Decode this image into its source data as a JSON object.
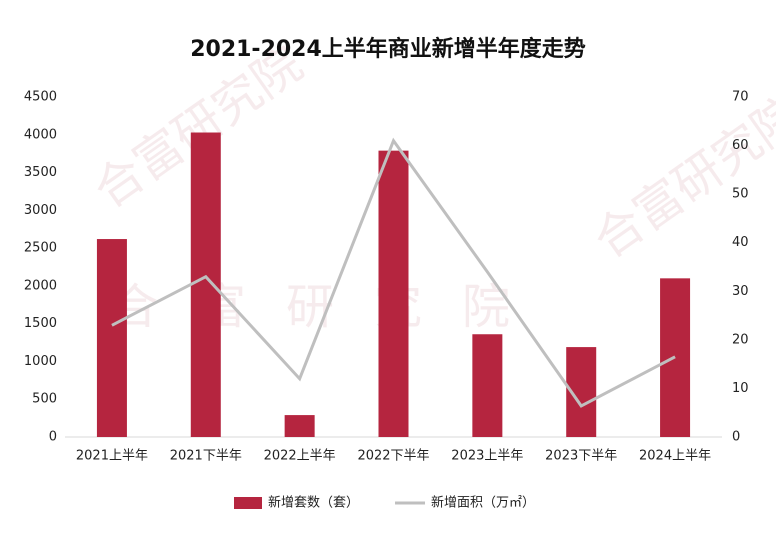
{
  "chart_data": {
    "type": "bar",
    "title": "2021-2024上半年商业新增半年度走势",
    "watermark": "合富研究院",
    "categories": [
      "2021上半年",
      "2021下半年",
      "2022上半年",
      "2022下半年",
      "2023上半年",
      "2023下半年",
      "2024上半年"
    ],
    "series": [
      {
        "name": "新增套数（套）",
        "type": "bar",
        "color": "#b5253f",
        "values": [
          2620,
          4030,
          290,
          3790,
          1360,
          1190,
          2100
        ]
      },
      {
        "name": "新增面积（万㎡）",
        "type": "line",
        "axis": "y2",
        "color": "#bfbfbf",
        "values": [
          23,
          33,
          12,
          61,
          34,
          6.4,
          16.5
        ]
      }
    ],
    "ylim": [
      0,
      4500
    ],
    "yticks": [
      0,
      500,
      1000,
      1500,
      2000,
      2500,
      3000,
      3500,
      4000,
      4500
    ],
    "y2lim": [
      0,
      70
    ],
    "y2ticks": [
      0,
      10,
      20,
      30,
      40,
      50,
      60,
      70
    ],
    "legend": "bottom"
  }
}
